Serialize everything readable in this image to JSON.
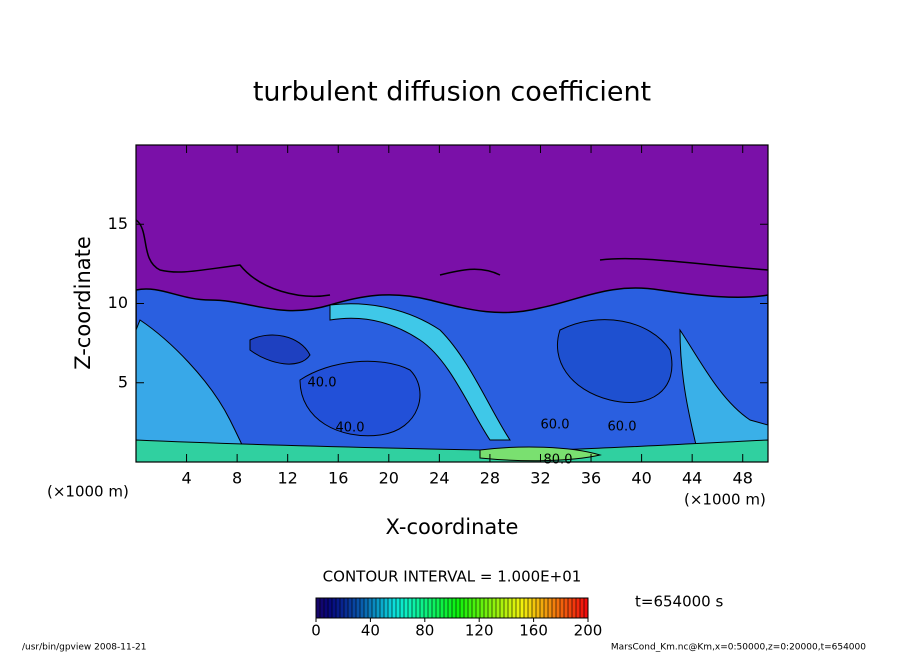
{
  "chart_data": {
    "type": "contour",
    "title": "turbulent diffusion coefficient",
    "x_label": "X-coordinate",
    "y_label": "Z-coordinate",
    "x_unit_label": "(×1000 m)",
    "xlim": [
      0,
      50
    ],
    "xticks": [
      4,
      8,
      12,
      16,
      20,
      24,
      28,
      32,
      36,
      40,
      44,
      48
    ],
    "ylim": [
      0,
      20
    ],
    "yticks": [
      5,
      10,
      15
    ],
    "contour_labels": [
      "40.0",
      "40.0",
      "60.0",
      "60.0",
      "80.0"
    ],
    "contour_interval_label": "CONTOUR INTERVAL = 1.000E+01",
    "time_label": "t=654000 s",
    "colorbar": {
      "lim": [
        0,
        200
      ],
      "ticks": [
        0,
        40,
        80,
        120,
        160,
        200
      ]
    }
  },
  "footer": {
    "left": "/usr/bin/gpview   2008-11-21",
    "right": "MarsCond_Km.nc@Km,x=0:50000,z=0:20000,t=654000"
  }
}
